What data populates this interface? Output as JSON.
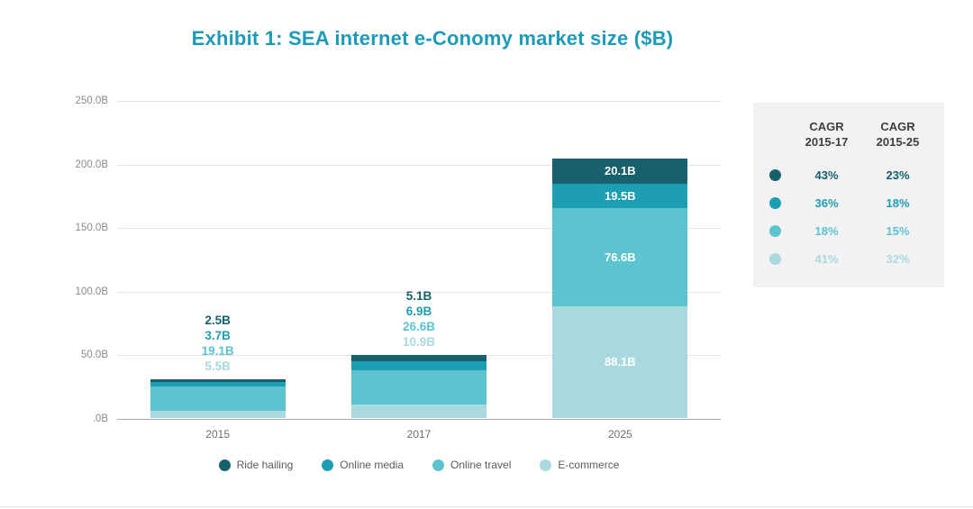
{
  "title": "Exhibit 1: SEA internet e-Conomy market size ($B)",
  "chart_data": {
    "type": "bar",
    "stacked": true,
    "categories": [
      "2015",
      "2017",
      "2025"
    ],
    "series": [
      {
        "name": "Ride hailing",
        "color": "#16616b",
        "values": [
          2.5,
          5.1,
          20.1
        ],
        "labels": [
          "2.5B",
          "5.1B",
          "20.1B"
        ]
      },
      {
        "name": "Online media",
        "color": "#1e9eb2",
        "values": [
          3.7,
          6.9,
          19.5
        ],
        "labels": [
          "3.7B",
          "6.9B",
          "19.5B"
        ]
      },
      {
        "name": "Online travel",
        "color": "#5cc4ce",
        "values": [
          19.1,
          26.6,
          76.6
        ],
        "labels": [
          "19.1B",
          "26.6B",
          "76.6B"
        ]
      },
      {
        "name": "E-commerce",
        "color": "#a9d9de",
        "values": [
          5.5,
          10.9,
          88.1
        ],
        "labels": [
          "5.5B",
          "10.9B",
          "88.1B"
        ]
      }
    ],
    "ylim": [
      0,
      250
    ],
    "yticks": [
      {
        "value": 0,
        "label": ".0B"
      },
      {
        "value": 50,
        "label": "50.0B"
      },
      {
        "value": 100,
        "label": "100.0B"
      },
      {
        "value": 150,
        "label": "150.0B"
      },
      {
        "value": 200,
        "label": "200.0B"
      },
      {
        "value": 250,
        "label": "250.0B"
      }
    ],
    "label_placement": [
      "above",
      "above",
      "inside"
    ],
    "grid": true,
    "legend_position": "bottom"
  },
  "cagr_panel": {
    "columns": [
      {
        "line1": "CAGR",
        "line2": "2015-17"
      },
      {
        "line1": "CAGR",
        "line2": "2015-25"
      }
    ],
    "rows": [
      {
        "series": "Ride hailing",
        "color": "#16616b",
        "values": [
          "43%",
          "23%"
        ]
      },
      {
        "series": "Online media",
        "color": "#1e9eb2",
        "values": [
          "36%",
          "18%"
        ]
      },
      {
        "series": "Online travel",
        "color": "#5cc4ce",
        "values": [
          "18%",
          "15%"
        ]
      },
      {
        "series": "E-commerce",
        "color": "#a9d9de",
        "values": [
          "41%",
          "32%"
        ]
      }
    ]
  },
  "colors": {
    "title": "#1e9ab9",
    "panel_bg": "#f2f1f3",
    "gridline": "#e4e4e4",
    "axis_line": "#a6a6a6"
  }
}
